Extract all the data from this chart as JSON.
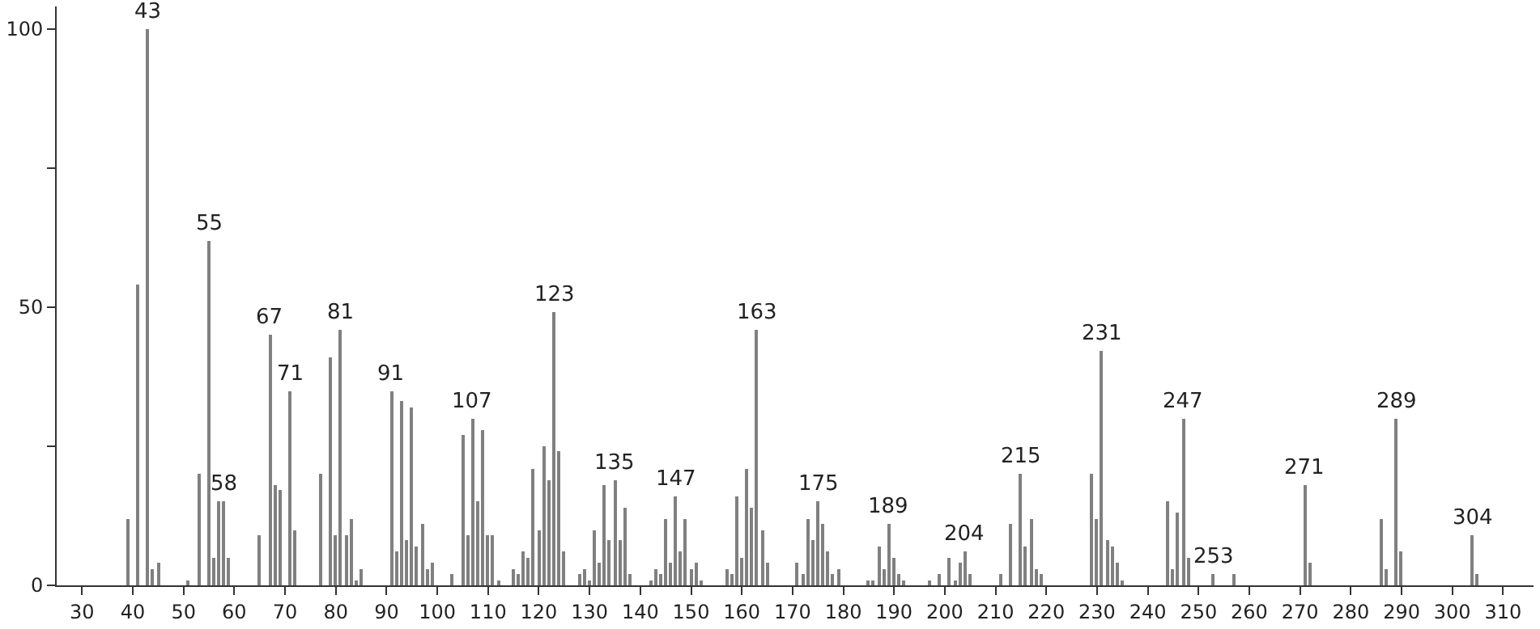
{
  "chart_data": {
    "type": "bar",
    "color": "#808080",
    "x": [
      39,
      41,
      43,
      44,
      45,
      51,
      53,
      55,
      56,
      57,
      58,
      59,
      65,
      67,
      68,
      69,
      71,
      72,
      77,
      79,
      80,
      81,
      82,
      83,
      84,
      85,
      91,
      92,
      93,
      94,
      95,
      96,
      97,
      98,
      99,
      103,
      105,
      106,
      107,
      108,
      109,
      110,
      111,
      112,
      115,
      116,
      117,
      118,
      119,
      120,
      121,
      122,
      123,
      124,
      125,
      128,
      129,
      130,
      131,
      132,
      133,
      134,
      135,
      136,
      137,
      138,
      142,
      143,
      144,
      145,
      146,
      147,
      148,
      149,
      150,
      151,
      152,
      157,
      158,
      159,
      160,
      161,
      162,
      163,
      164,
      165,
      171,
      172,
      173,
      174,
      175,
      176,
      177,
      178,
      179,
      185,
      186,
      187,
      188,
      189,
      190,
      191,
      192,
      197,
      199,
      201,
      202,
      203,
      204,
      205,
      211,
      213,
      215,
      216,
      217,
      218,
      219,
      229,
      230,
      231,
      232,
      233,
      234,
      235,
      244,
      245,
      246,
      247,
      248,
      253,
      257,
      271,
      272,
      286,
      287,
      289,
      290,
      304,
      305
    ],
    "values": [
      12,
      54,
      100,
      3,
      4,
      1,
      20,
      62,
      5,
      15,
      15,
      5,
      9,
      45,
      18,
      17,
      35,
      10,
      20,
      41,
      9,
      46,
      9,
      12,
      1,
      3,
      35,
      6,
      33,
      8,
      32,
      7,
      11,
      3,
      4,
      2,
      27,
      9,
      30,
      15,
      28,
      9,
      9,
      1,
      3,
      2,
      6,
      5,
      21,
      10,
      25,
      19,
      49,
      24,
      6,
      2,
      3,
      1,
      10,
      4,
      18,
      8,
      19,
      8,
      14,
      2,
      1,
      3,
      2,
      12,
      4,
      16,
      6,
      12,
      3,
      4,
      1,
      3,
      2,
      16,
      5,
      21,
      14,
      46,
      10,
      4,
      4,
      2,
      12,
      8,
      15,
      11,
      6,
      2,
      3,
      1,
      1,
      7,
      3,
      11,
      5,
      2,
      1,
      1,
      2,
      5,
      1,
      4,
      6,
      2,
      2,
      11,
      20,
      7,
      12,
      3,
      2,
      20,
      12,
      42,
      8,
      7,
      4,
      1,
      15,
      3,
      13,
      30,
      5,
      2,
      2,
      18,
      4,
      12,
      3,
      30,
      6,
      9,
      2
    ],
    "xlim": [
      25,
      316
    ],
    "ylim": [
      0,
      104
    ],
    "xticks": [
      30,
      40,
      50,
      60,
      70,
      80,
      90,
      100,
      110,
      120,
      130,
      140,
      150,
      160,
      170,
      180,
      190,
      200,
      210,
      220,
      230,
      240,
      250,
      260,
      270,
      280,
      290,
      300,
      310
    ],
    "yticks": [
      0,
      {
        "value": 25,
        "label": null
      },
      50,
      {
        "value": 75,
        "label": null
      },
      100
    ],
    "annotations": [
      {
        "text": "43",
        "x": 43,
        "y": 100
      },
      {
        "text": "55",
        "x": 55,
        "y": 62
      },
      {
        "text": "58",
        "x": 58,
        "y": 15
      },
      {
        "text": "67",
        "x": 67,
        "y": 45
      },
      {
        "text": "71",
        "x": 71,
        "y": 35
      },
      {
        "text": "81",
        "x": 81,
        "y": 46
      },
      {
        "text": "91",
        "x": 91,
        "y": 35
      },
      {
        "text": "107",
        "x": 107,
        "y": 30
      },
      {
        "text": "123",
        "x": 123,
        "y": 49
      },
      {
        "text": "135",
        "x": 135,
        "y": 19
      },
      {
        "text": "147",
        "x": 147,
        "y": 16
      },
      {
        "text": "163",
        "x": 163,
        "y": 46
      },
      {
        "text": "175",
        "x": 175,
        "y": 15
      },
      {
        "text": "189",
        "x": 189,
        "y": 11
      },
      {
        "text": "204",
        "x": 204,
        "y": 6
      },
      {
        "text": "215",
        "x": 215,
        "y": 20
      },
      {
        "text": "231",
        "x": 231,
        "y": 42
      },
      {
        "text": "247",
        "x": 247,
        "y": 30
      },
      {
        "text": "253",
        "x": 253,
        "y": 2
      },
      {
        "text": "271",
        "x": 271,
        "y": 18
      },
      {
        "text": "289",
        "x": 289,
        "y": 30
      },
      {
        "text": "304",
        "x": 304,
        "y": 9
      }
    ]
  }
}
